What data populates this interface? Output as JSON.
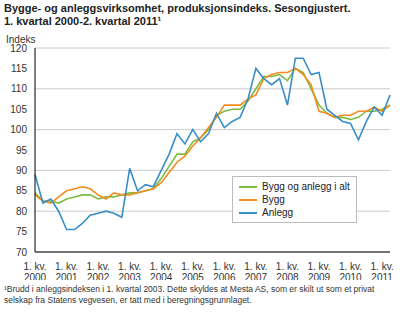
{
  "chart_data": {
    "type": "line",
    "title": "Bygge- og anleggsvirksomhet, produksjonsindeks. Sesongjustert.\n1. kvartal 2000-2. kvartal 2011¹",
    "y_label": "Indeks",
    "footnote": "¹Brudd i anleggsindeksen i 1. kvartal 2003. Dette skyldes at Mesta AS, som er skilt ut som et privat selskap fra Statens vegvesen, er tatt med i beregningsgrunnlaget.",
    "categories": [
      "1. kv. 2000",
      null,
      null,
      null,
      "1. kv. 2001",
      null,
      null,
      null,
      "1. kv. 2002",
      null,
      null,
      null,
      "1. kv. 2003",
      null,
      null,
      null,
      "1. kv. 2004",
      null,
      null,
      null,
      "1. kv. 2005",
      null,
      null,
      null,
      "1. kv. 2006",
      null,
      null,
      null,
      "1. kv. 2007",
      null,
      null,
      null,
      "1. kv. 2008",
      null,
      null,
      null,
      "1. kv. 2009",
      null,
      null,
      null,
      "1. kv. 2010",
      null,
      null,
      null,
      "1. kv. 2011",
      null
    ],
    "series": [
      {
        "name": "Bygg og anlegg i alt",
        "color": "#7cbc42",
        "values": [
          84.5,
          82.5,
          82.5,
          82,
          83,
          83.5,
          84,
          84,
          83,
          83.5,
          83.5,
          84,
          84.5,
          84.5,
          85,
          85.5,
          88,
          91,
          94,
          94,
          97,
          98,
          100,
          103.5,
          104.5,
          105,
          105,
          107,
          110,
          113,
          113,
          113.5,
          112,
          115,
          114,
          110,
          106,
          104,
          103,
          103,
          102.5,
          103,
          104.5,
          104.5,
          105,
          106
        ]
      },
      {
        "name": "Bygg",
        "color": "#f28c1e",
        "values": [
          84,
          82.5,
          82,
          83.5,
          85,
          85.5,
          86,
          85.5,
          84,
          83,
          84.5,
          84,
          84,
          84.5,
          85,
          85.5,
          87,
          89.5,
          92,
          93.5,
          96,
          98,
          100.5,
          103,
          106,
          106,
          106,
          107.5,
          108.5,
          112.5,
          113.5,
          114,
          114,
          115,
          113.5,
          111,
          104.5,
          104,
          103,
          103.5,
          103.5,
          104.5,
          104.5,
          105.5,
          104.5,
          106
        ]
      },
      {
        "name": "Anlegg",
        "color": "#3a8ec7",
        "values": [
          89,
          82,
          83,
          80,
          75.5,
          75.5,
          77,
          79,
          79.5,
          80,
          79.5,
          78.5,
          90.5,
          85,
          86.5,
          86,
          90,
          94,
          99,
          96.5,
          100,
          97,
          99,
          104,
          100.5,
          102,
          103,
          107.5,
          115,
          112.5,
          111,
          112.5,
          106,
          117.5,
          117.5,
          113.5,
          114,
          105,
          103.5,
          102,
          101.5,
          97.5,
          102,
          105.5,
          103.5,
          108.5
        ]
      }
    ],
    "ylim": [
      70,
      120
    ],
    "yticks": [
      70,
      75,
      80,
      85,
      90,
      95,
      100,
      105,
      110,
      115,
      120
    ],
    "grid": true,
    "legend": "right"
  }
}
